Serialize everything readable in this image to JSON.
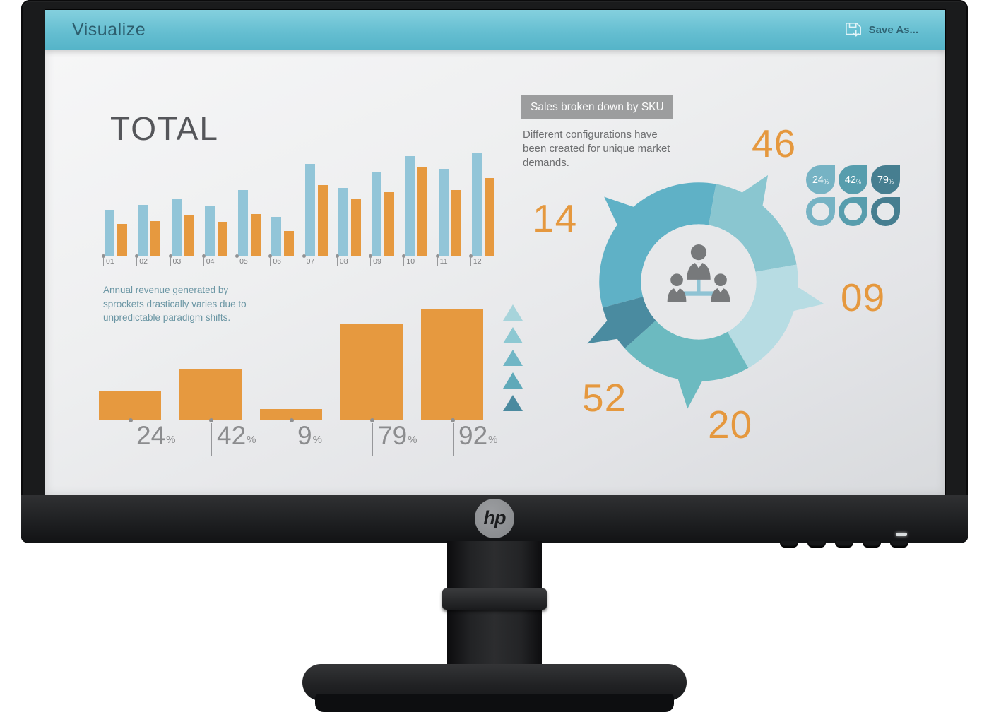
{
  "app": {
    "title": "Visualize",
    "save_as_label": "Save As..."
  },
  "left_panel": {
    "total_heading": "TOTAL",
    "annual_note": "Annual revenue generated by sprockets drastically varies due to unpredictable paradigm shifts."
  },
  "right_panel": {
    "sku_header": "Sales broken down by SKU",
    "sku_note": "Different configurations have been created for unique market demands."
  },
  "badges": [
    {
      "label": "24",
      "suffix": "%",
      "color": "#76b3c4"
    },
    {
      "label": "42",
      "suffix": "%",
      "color": "#579dad"
    },
    {
      "label": "79",
      "suffix": "%",
      "color": "#467e90"
    }
  ],
  "triangles": {
    "colors": [
      "#a7d4db",
      "#8dc8d2",
      "#70b6c5",
      "#5fa9b9",
      "#4b8a9f"
    ]
  },
  "chart_data": [
    {
      "id": "monthly-sales",
      "type": "bar",
      "title": "TOTAL",
      "categories": [
        "01",
        "02",
        "03",
        "04",
        "05",
        "06",
        "07",
        "08",
        "09",
        "10",
        "11",
        "12"
      ],
      "series": [
        {
          "name": "series-blue",
          "color": "#92c5d8",
          "values": [
            45,
            50,
            56,
            48,
            64,
            38,
            90,
            66,
            82,
            97,
            85,
            100
          ]
        },
        {
          "name": "series-orange",
          "color": "#e6993f",
          "values": [
            31,
            34,
            39,
            33,
            41,
            24,
            69,
            56,
            62,
            86,
            64,
            76
          ]
        }
      ],
      "ylim": [
        0,
        100
      ],
      "grid": false,
      "legend": "none",
      "note": "relative heights, no value labels shown"
    },
    {
      "id": "annual-revenue-pct",
      "type": "bar",
      "categories": [
        "24%",
        "42%",
        "9%",
        "79%",
        "92%"
      ],
      "values": [
        24,
        42,
        9,
        79,
        92
      ],
      "color": "#e6993f",
      "ylim": [
        0,
        100
      ],
      "grid": false,
      "caption": "Annual revenue generated by sprockets drastically varies due to unpredictable paradigm shifts."
    },
    {
      "id": "sku-donut",
      "type": "pie",
      "title": "Sales broken down by SKU",
      "segments": [
        {
          "label": "14",
          "color": "#5fb1c6",
          "position": "left"
        },
        {
          "label": "46",
          "color": "#8ac6d0",
          "position": "top-right"
        },
        {
          "label": "09",
          "color": "#b7dce3",
          "position": "right"
        },
        {
          "label": "20",
          "color": "#6cbac0",
          "position": "bottom"
        },
        {
          "label": "52",
          "color": "#4a8ba0",
          "position": "bottom-left"
        }
      ],
      "center_icon": "org-chart-people"
    }
  ],
  "monitor": {
    "brand_logo": "hp"
  }
}
